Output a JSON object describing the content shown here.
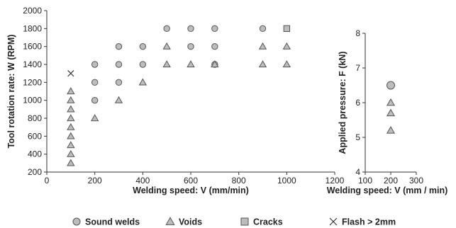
{
  "chart_data": [
    {
      "type": "scatter",
      "xlabel": "Welding speed: V (mm/min)",
      "ylabel": "Tool rotation rate: W (RPM)",
      "xlim": [
        0,
        1200
      ],
      "ylim": [
        200,
        2000
      ],
      "xticks": [
        "0",
        "200",
        "400",
        "600",
        "800",
        "1000",
        "1200"
      ],
      "yticks": [
        "200",
        "400",
        "600",
        "800",
        "1000",
        "1200",
        "1400",
        "1600",
        "1800",
        "2000"
      ],
      "grid": false,
      "series": [
        {
          "name": "Sound welds",
          "marker": "circle",
          "points": [
            [
              200,
              1000
            ],
            [
              200,
              1200
            ],
            [
              200,
              1400
            ],
            [
              300,
              1200
            ],
            [
              300,
              1400
            ],
            [
              300,
              1600
            ],
            [
              400,
              1400
            ],
            [
              400,
              1600
            ],
            [
              500,
              1800
            ],
            [
              600,
              1600
            ],
            [
              600,
              1800
            ],
            [
              700,
              1400
            ],
            [
              700,
              1600
            ],
            [
              700,
              1800
            ],
            [
              900,
              1800
            ]
          ]
        },
        {
          "name": "Voids",
          "marker": "triangle",
          "points": [
            [
              100,
              300
            ],
            [
              100,
              400
            ],
            [
              100,
              500
            ],
            [
              100,
              600
            ],
            [
              100,
              700
            ],
            [
              100,
              800
            ],
            [
              100,
              900
            ],
            [
              100,
              1000
            ],
            [
              100,
              1100
            ],
            [
              200,
              800
            ],
            [
              300,
              1000
            ],
            [
              400,
              1200
            ],
            [
              500,
              1400
            ],
            [
              500,
              1600
            ],
            [
              600,
              1400
            ],
            [
              700,
              1400
            ],
            [
              900,
              1400
            ],
            [
              900,
              1600
            ],
            [
              1000,
              1400
            ],
            [
              1000,
              1600
            ]
          ]
        },
        {
          "name": "Cracks",
          "marker": "square",
          "points": [
            [
              1000,
              1800
            ]
          ]
        },
        {
          "name": "Flash > 2mm",
          "marker": "x",
          "points": [
            [
              100,
              1300
            ]
          ]
        }
      ]
    },
    {
      "type": "scatter",
      "xlabel": "Welding speed: V (mm / min)",
      "ylabel": "Applied pressure: F (kN)",
      "xlim": [
        100,
        300
      ],
      "ylim": [
        4,
        8
      ],
      "xticks": [
        "100",
        "200",
        "300"
      ],
      "yticks": [
        "4",
        "5",
        "6",
        "7",
        "8"
      ],
      "grid": false,
      "series": [
        {
          "name": "Sound welds",
          "marker": "circle",
          "points": [
            [
              200,
              6.5
            ]
          ]
        },
        {
          "name": "Voids",
          "marker": "triangle",
          "points": [
            [
              200,
              6.0
            ],
            [
              200,
              5.7
            ],
            [
              200,
              5.2
            ]
          ]
        }
      ]
    }
  ],
  "legend": {
    "placement": "bottom",
    "items": [
      {
        "label": "Sound welds",
        "marker": "circle"
      },
      {
        "label": "Voids",
        "marker": "triangle"
      },
      {
        "label": "Cracks",
        "marker": "square"
      },
      {
        "label": "Flash > 2mm",
        "marker": "x"
      }
    ]
  },
  "colors": {
    "marker_fill": "#bdbdbd",
    "marker_stroke": "#555555",
    "axis": "#333333",
    "text": "#222222"
  }
}
